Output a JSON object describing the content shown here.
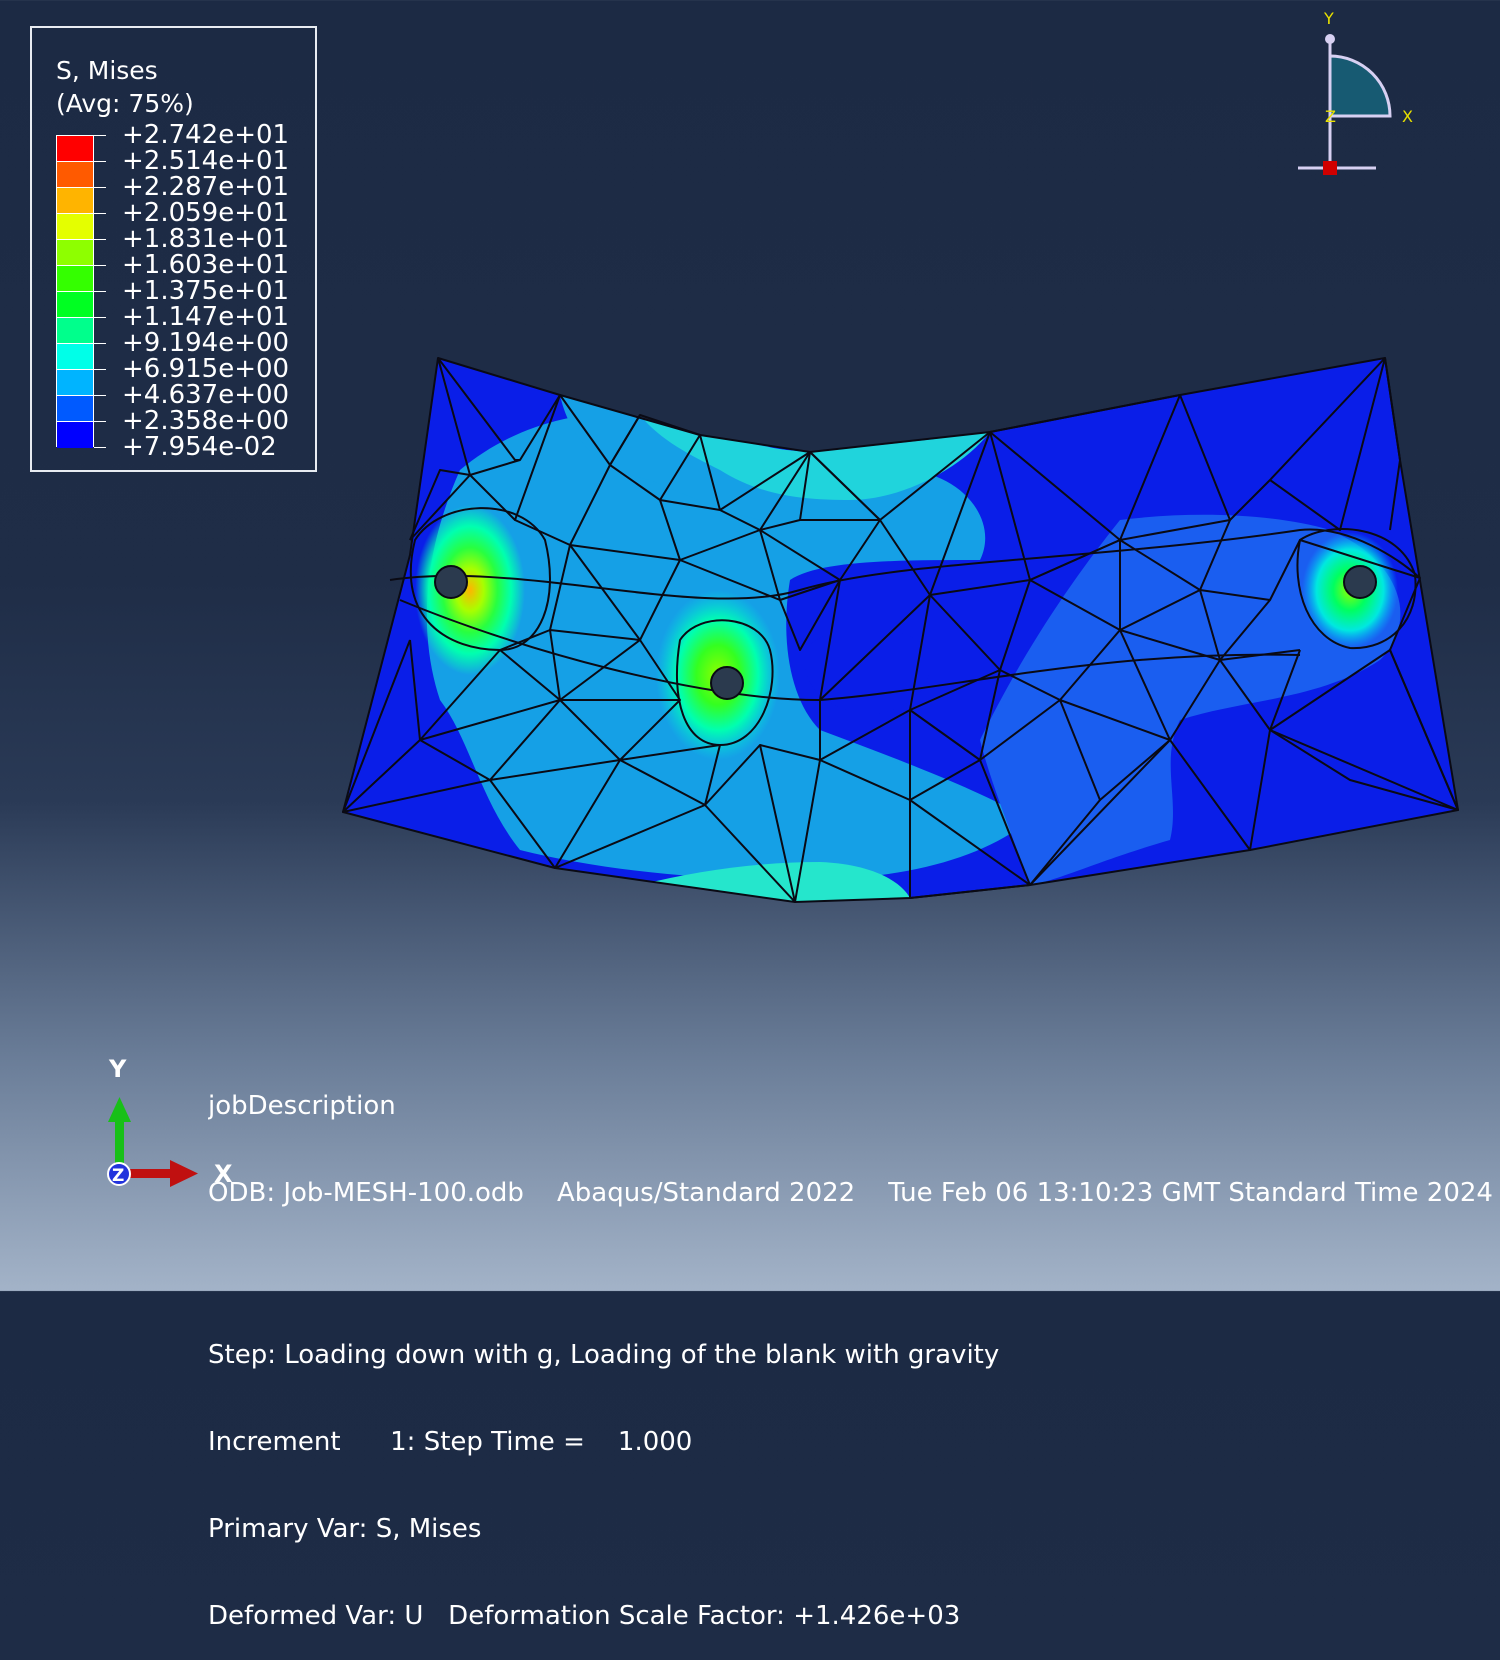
{
  "legend": {
    "title_line1": "S, Mises",
    "title_line2": "(Avg: 75%)",
    "bands": [
      "#ff0000",
      "#ff5a00",
      "#ffb400",
      "#e4ff00",
      "#8eff00",
      "#34ff00",
      "#00ff22",
      "#00ff8c",
      "#00ffe8",
      "#00b4ff",
      "#005aff",
      "#0000ff"
    ],
    "labels": [
      "+2.742e+01",
      "+2.514e+01",
      "+2.287e+01",
      "+2.059e+01",
      "+1.831e+01",
      "+1.603e+01",
      "+1.375e+01",
      "+1.147e+01",
      "+9.194e+00",
      "+6.915e+00",
      "+4.637e+00",
      "+2.358e+00",
      "+7.954e-02"
    ]
  },
  "triad_top": {
    "y_label": "Y",
    "x_label": "X",
    "z_label": "Z"
  },
  "triad_bottom": {
    "y_label": "Y",
    "x_label": "X",
    "z_label": "Z"
  },
  "info": {
    "line1": "jobDescription",
    "line2": "ODB: Job-MESH-100.odb    Abaqus/Standard 2022    Tue Feb 06 13:10:23 GMT Standard Time 2024",
    "line3": "Step: Loading down with g, Loading of the blank with gravity",
    "line4": "Increment      1: Step Time =    1.000",
    "line5": "Primary Var: S, Mises",
    "line6": "Deformed Var: U   Deformation Scale Factor: +1.426e+03"
  },
  "colors": {
    "low_stress": "#1a2fe0",
    "mid_stress": "#1aa0e6",
    "higher_stress": "#2ee0c8",
    "hot_spot": "#6ff020"
  }
}
